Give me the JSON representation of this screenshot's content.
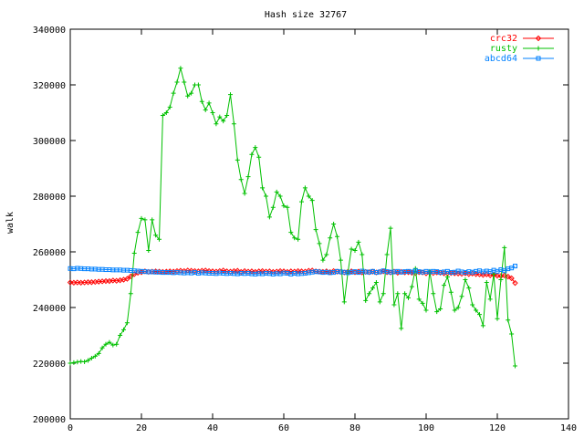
{
  "chart_data": {
    "type": "line",
    "title": "Hash size 32767",
    "xlabel": "",
    "ylabel": "walk",
    "xlim": [
      0,
      140
    ],
    "ylim": [
      200000,
      340000
    ],
    "x_ticks": [
      0,
      20,
      40,
      60,
      80,
      100,
      120,
      140
    ],
    "y_ticks": [
      200000,
      220000,
      240000,
      260000,
      280000,
      300000,
      320000,
      340000
    ],
    "legend_position": "top-right",
    "grid": false,
    "series": [
      {
        "name": "crc32",
        "color": "#ff0000",
        "marker": "diamond",
        "x": [
          0,
          1,
          2,
          3,
          4,
          5,
          6,
          7,
          8,
          9,
          10,
          11,
          12,
          13,
          14,
          15,
          16,
          17,
          18,
          19,
          20,
          21,
          22,
          23,
          24,
          25,
          26,
          27,
          28,
          29,
          30,
          31,
          32,
          33,
          34,
          35,
          36,
          37,
          38,
          39,
          40,
          41,
          42,
          43,
          44,
          45,
          46,
          47,
          48,
          49,
          50,
          51,
          52,
          53,
          54,
          55,
          56,
          57,
          58,
          59,
          60,
          61,
          62,
          63,
          64,
          65,
          66,
          67,
          68,
          69,
          70,
          71,
          72,
          73,
          74,
          75,
          76,
          77,
          78,
          79,
          80,
          81,
          82,
          83,
          84,
          85,
          86,
          87,
          88,
          89,
          90,
          91,
          92,
          93,
          94,
          95,
          96,
          97,
          98,
          99,
          100,
          101,
          102,
          103,
          104,
          105,
          106,
          107,
          108,
          109,
          110,
          111,
          112,
          113,
          114,
          115,
          116,
          117,
          118,
          119,
          120,
          121,
          122,
          123,
          124,
          125
        ],
        "y": [
          249000,
          248900,
          249000,
          248900,
          249000,
          249100,
          249100,
          249200,
          249300,
          249400,
          249500,
          249500,
          249700,
          249600,
          249800,
          250000,
          250300,
          251200,
          252000,
          252500,
          252700,
          253000,
          252800,
          252900,
          253000,
          252900,
          252800,
          252900,
          253000,
          252900,
          253100,
          253200,
          253100,
          253300,
          253200,
          253100,
          253000,
          253200,
          253300,
          253100,
          253000,
          252900,
          253100,
          253300,
          253000,
          252900,
          253100,
          253200,
          252800,
          253100,
          252900,
          253000,
          252800,
          253000,
          253100,
          252900,
          253000,
          252800,
          252900,
          253100,
          253000,
          252800,
          253000,
          252900,
          253100,
          253000,
          252900,
          253200,
          253300,
          253000,
          252900,
          252800,
          253000,
          252700,
          253100,
          252900,
          252800,
          252600,
          252800,
          253000,
          252700,
          252900,
          252600,
          252800,
          252700,
          252900,
          252600,
          252800,
          253000,
          252700,
          252600,
          252900,
          252500,
          252800,
          252600,
          252700,
          252500,
          252400,
          252700,
          252600,
          252300,
          252500,
          252400,
          252600,
          252500,
          252300,
          252200,
          252400,
          252300,
          252200,
          252100,
          252300,
          252000,
          252200,
          252000,
          251900,
          251700,
          251900,
          251600,
          251700,
          251400,
          251300,
          251500,
          251100,
          250500,
          248800
        ]
      },
      {
        "name": "rusty",
        "color": "#00c000",
        "marker": "plus",
        "x": [
          0,
          1,
          2,
          3,
          4,
          5,
          6,
          7,
          8,
          9,
          10,
          11,
          12,
          13,
          14,
          15,
          16,
          17,
          18,
          19,
          20,
          21,
          22,
          23,
          24,
          25,
          26,
          27,
          28,
          29,
          30,
          31,
          32,
          33,
          34,
          35,
          36,
          37,
          38,
          39,
          40,
          41,
          42,
          43,
          44,
          45,
          46,
          47,
          48,
          49,
          50,
          51,
          52,
          53,
          54,
          55,
          56,
          57,
          58,
          59,
          60,
          61,
          62,
          63,
          64,
          65,
          66,
          67,
          68,
          69,
          70,
          71,
          72,
          73,
          74,
          75,
          76,
          77,
          78,
          79,
          80,
          81,
          82,
          83,
          84,
          85,
          86,
          87,
          88,
          89,
          90,
          91,
          92,
          93,
          94,
          95,
          96,
          97,
          98,
          99,
          100,
          101,
          102,
          103,
          104,
          105,
          106,
          107,
          108,
          109,
          110,
          111,
          112,
          113,
          114,
          115,
          116,
          117,
          118,
          119,
          120,
          121,
          122,
          123,
          124,
          125
        ],
        "y": [
          220000,
          220200,
          220400,
          220600,
          220500,
          221000,
          221800,
          222500,
          223500,
          225500,
          226800,
          227500,
          226500,
          226800,
          230000,
          232000,
          234500,
          245000,
          259500,
          267000,
          272000,
          271500,
          260500,
          271500,
          266000,
          264500,
          309000,
          310000,
          312000,
          317000,
          321000,
          326000,
          321000,
          316000,
          317000,
          320000,
          320000,
          314000,
          311000,
          313500,
          310000,
          306000,
          308500,
          307000,
          309000,
          316500,
          306000,
          293000,
          286000,
          281000,
          287000,
          295000,
          297500,
          294000,
          283000,
          280000,
          272500,
          276000,
          281500,
          280000,
          276500,
          276000,
          267000,
          265000,
          264500,
          278000,
          283000,
          280000,
          278500,
          268000,
          263000,
          257000,
          259000,
          265000,
          270000,
          265500,
          257000,
          242000,
          252500,
          261000,
          260500,
          263500,
          259000,
          242500,
          245000,
          247000,
          249000,
          242000,
          245000,
          259000,
          268500,
          241000,
          245000,
          232500,
          245000,
          243500,
          247500,
          254000,
          243000,
          241500,
          239000,
          253000,
          245000,
          238500,
          239500,
          248000,
          251000,
          245500,
          239000,
          240000,
          244000,
          250000,
          247000,
          241000,
          239000,
          237500,
          233500,
          249000,
          243000,
          252000,
          236000,
          250000,
          261500,
          235500,
          230500,
          219000
        ]
      },
      {
        "name": "abcd64",
        "color": "#0080ff",
        "marker": "square",
        "x": [
          0,
          1,
          2,
          3,
          4,
          5,
          6,
          7,
          8,
          9,
          10,
          11,
          12,
          13,
          14,
          15,
          16,
          17,
          18,
          19,
          20,
          21,
          22,
          23,
          24,
          25,
          26,
          27,
          28,
          29,
          30,
          31,
          32,
          33,
          34,
          35,
          36,
          37,
          38,
          39,
          40,
          41,
          42,
          43,
          44,
          45,
          46,
          47,
          48,
          49,
          50,
          51,
          52,
          53,
          54,
          55,
          56,
          57,
          58,
          59,
          60,
          61,
          62,
          63,
          64,
          65,
          66,
          67,
          68,
          69,
          70,
          71,
          72,
          73,
          74,
          75,
          76,
          77,
          78,
          79,
          80,
          81,
          82,
          83,
          84,
          85,
          86,
          87,
          88,
          89,
          90,
          91,
          92,
          93,
          94,
          95,
          96,
          97,
          98,
          99,
          100,
          101,
          102,
          103,
          104,
          105,
          106,
          107,
          108,
          109,
          110,
          111,
          112,
          113,
          114,
          115,
          116,
          117,
          118,
          119,
          120,
          121,
          122,
          123,
          124,
          125
        ],
        "y": [
          254000,
          253900,
          254100,
          254000,
          253900,
          253900,
          253800,
          253800,
          253700,
          253700,
          253600,
          253600,
          253500,
          253500,
          253500,
          253400,
          253400,
          253300,
          253200,
          253100,
          253000,
          252900,
          252800,
          252800,
          252700,
          252700,
          252600,
          252600,
          252600,
          252500,
          252600,
          252500,
          252400,
          252500,
          252400,
          252600,
          252300,
          252500,
          252400,
          252300,
          252300,
          252200,
          252400,
          252300,
          252200,
          252300,
          252200,
          252100,
          252300,
          252200,
          252300,
          252100,
          252000,
          252200,
          252100,
          252300,
          252200,
          252000,
          252200,
          252100,
          252400,
          252300,
          252000,
          252300,
          252100,
          252200,
          252300,
          252500,
          252700,
          252900,
          252800,
          252600,
          252700,
          252500,
          252600,
          253000,
          252800,
          252700,
          252500,
          252700,
          252900,
          252600,
          253100,
          252800,
          252700,
          253000,
          252600,
          252800,
          253200,
          252900,
          252700,
          252800,
          253000,
          252700,
          252900,
          253000,
          252800,
          253200,
          252900,
          252700,
          253000,
          252800,
          253000,
          252900,
          252600,
          252800,
          253000,
          252600,
          252700,
          253100,
          252800,
          252600,
          252900,
          252700,
          253000,
          253200,
          252800,
          253100,
          252900,
          253400,
          253000,
          253600,
          253200,
          253900,
          254200,
          254900
        ]
      }
    ]
  }
}
